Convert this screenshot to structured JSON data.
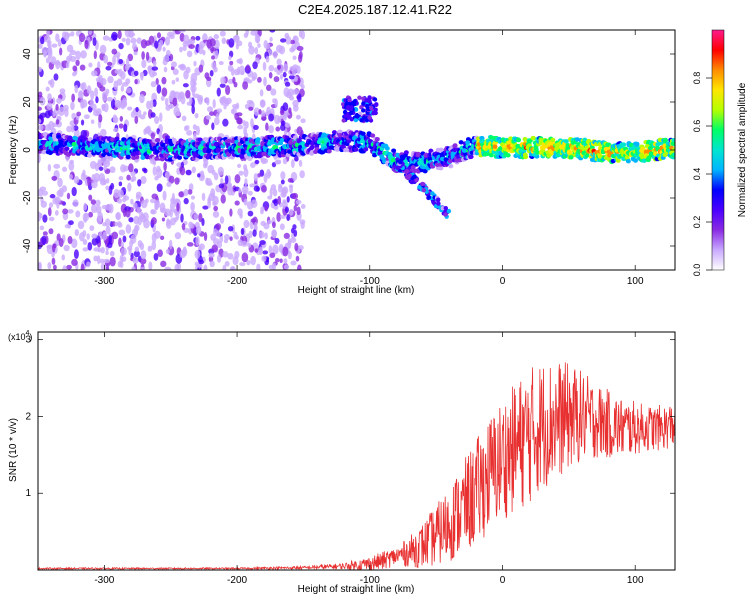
{
  "title": "C2E4.2025.187.12.41.R22",
  "colors": {
    "snr_line": "#e83030",
    "colormap": [
      "#ffffff",
      "#c9a9ff",
      "#8a2be2",
      "#4b00ff",
      "#0000ff",
      "#00b4ff",
      "#00e5d0",
      "#00ff66",
      "#b4ff00",
      "#ffe600",
      "#ff8c00",
      "#ff0000",
      "#ff1a8c"
    ]
  },
  "chart_data": [
    {
      "type": "heatmap",
      "title": "C2E4.2025.187.12.41.R22",
      "xlabel": "Height of straight line (km)",
      "ylabel": "Frequency (Hz)",
      "xlim": [
        -350,
        130
      ],
      "ylim": [
        -50,
        50
      ],
      "xticks": [
        -300,
        -200,
        -100,
        0,
        100
      ],
      "yticks": [
        -40,
        -20,
        0,
        20,
        40
      ],
      "grid": false,
      "colorbar": {
        "label": "Normalized spectral amplitude",
        "range": [
          0.0,
          1.0
        ],
        "ticks": [
          0.0,
          0.2,
          0.4,
          0.6,
          0.8
        ]
      },
      "ridge": [
        {
          "x": -350,
          "y": 3
        },
        {
          "x": -300,
          "y": 1
        },
        {
          "x": -250,
          "y": 0
        },
        {
          "x": -200,
          "y": 1
        },
        {
          "x": -150,
          "y": 2
        },
        {
          "x": -120,
          "y": 4
        },
        {
          "x": -100,
          "y": 3
        },
        {
          "x": -80,
          "y": -5
        },
        {
          "x": -60,
          "y": -5
        },
        {
          "x": -40,
          "y": -3
        },
        {
          "x": -20,
          "y": 2
        },
        {
          "x": 0,
          "y": 1
        },
        {
          "x": 50,
          "y": 1
        },
        {
          "x": 80,
          "y": -1
        },
        {
          "x": 100,
          "y": -1
        },
        {
          "x": 130,
          "y": 1
        }
      ],
      "features": [
        {
          "x_range": [
            -120,
            -95
          ],
          "y_range": [
            12,
            22
          ],
          "note": "upper branch"
        },
        {
          "x_range": [
            -80,
            -40
          ],
          "y_range": [
            -27,
            -5
          ],
          "note": "lower branch"
        }
      ],
      "noise_region_x": [
        -350,
        -150
      ]
    },
    {
      "type": "line",
      "xlabel": "Height of straight line (km)",
      "ylabel": "SNR (10 * v/v)",
      "y_multiplier_label": "(x10",
      "y_multiplier_exp": "4",
      "xlim": [
        -350,
        130
      ],
      "ylim": [
        0,
        3.1
      ],
      "xticks": [
        -300,
        -200,
        -100,
        0,
        100
      ],
      "yticks": [
        1,
        2,
        3
      ],
      "grid": false,
      "series": [
        {
          "x": [
            -350,
            -300,
            -250,
            -200,
            -150,
            -120,
            -100,
            -90,
            -80,
            -70,
            -60,
            -50,
            -40,
            -30,
            -20,
            -10,
            0,
            10,
            20,
            30,
            40,
            50,
            60,
            70,
            80,
            90,
            100,
            110,
            120,
            130
          ],
          "y": [
            0.02,
            0.02,
            0.02,
            0.02,
            0.03,
            0.05,
            0.08,
            0.12,
            0.18,
            0.24,
            0.32,
            0.45,
            0.6,
            0.8,
            1.0,
            1.25,
            1.45,
            1.6,
            1.75,
            1.9,
            1.95,
            2.0,
            2.0,
            1.95,
            1.9,
            1.85,
            1.85,
            1.85,
            1.85,
            1.9
          ],
          "y_spread": [
            0.01,
            0.01,
            0.01,
            0.01,
            0.02,
            0.04,
            0.1,
            0.12,
            0.12,
            0.2,
            0.3,
            0.4,
            0.5,
            0.6,
            0.7,
            0.75,
            0.8,
            0.85,
            0.9,
            0.85,
            0.8,
            0.7,
            0.6,
            0.5,
            0.45,
            0.4,
            0.35,
            0.3,
            0.3,
            0.3
          ]
        }
      ]
    }
  ]
}
